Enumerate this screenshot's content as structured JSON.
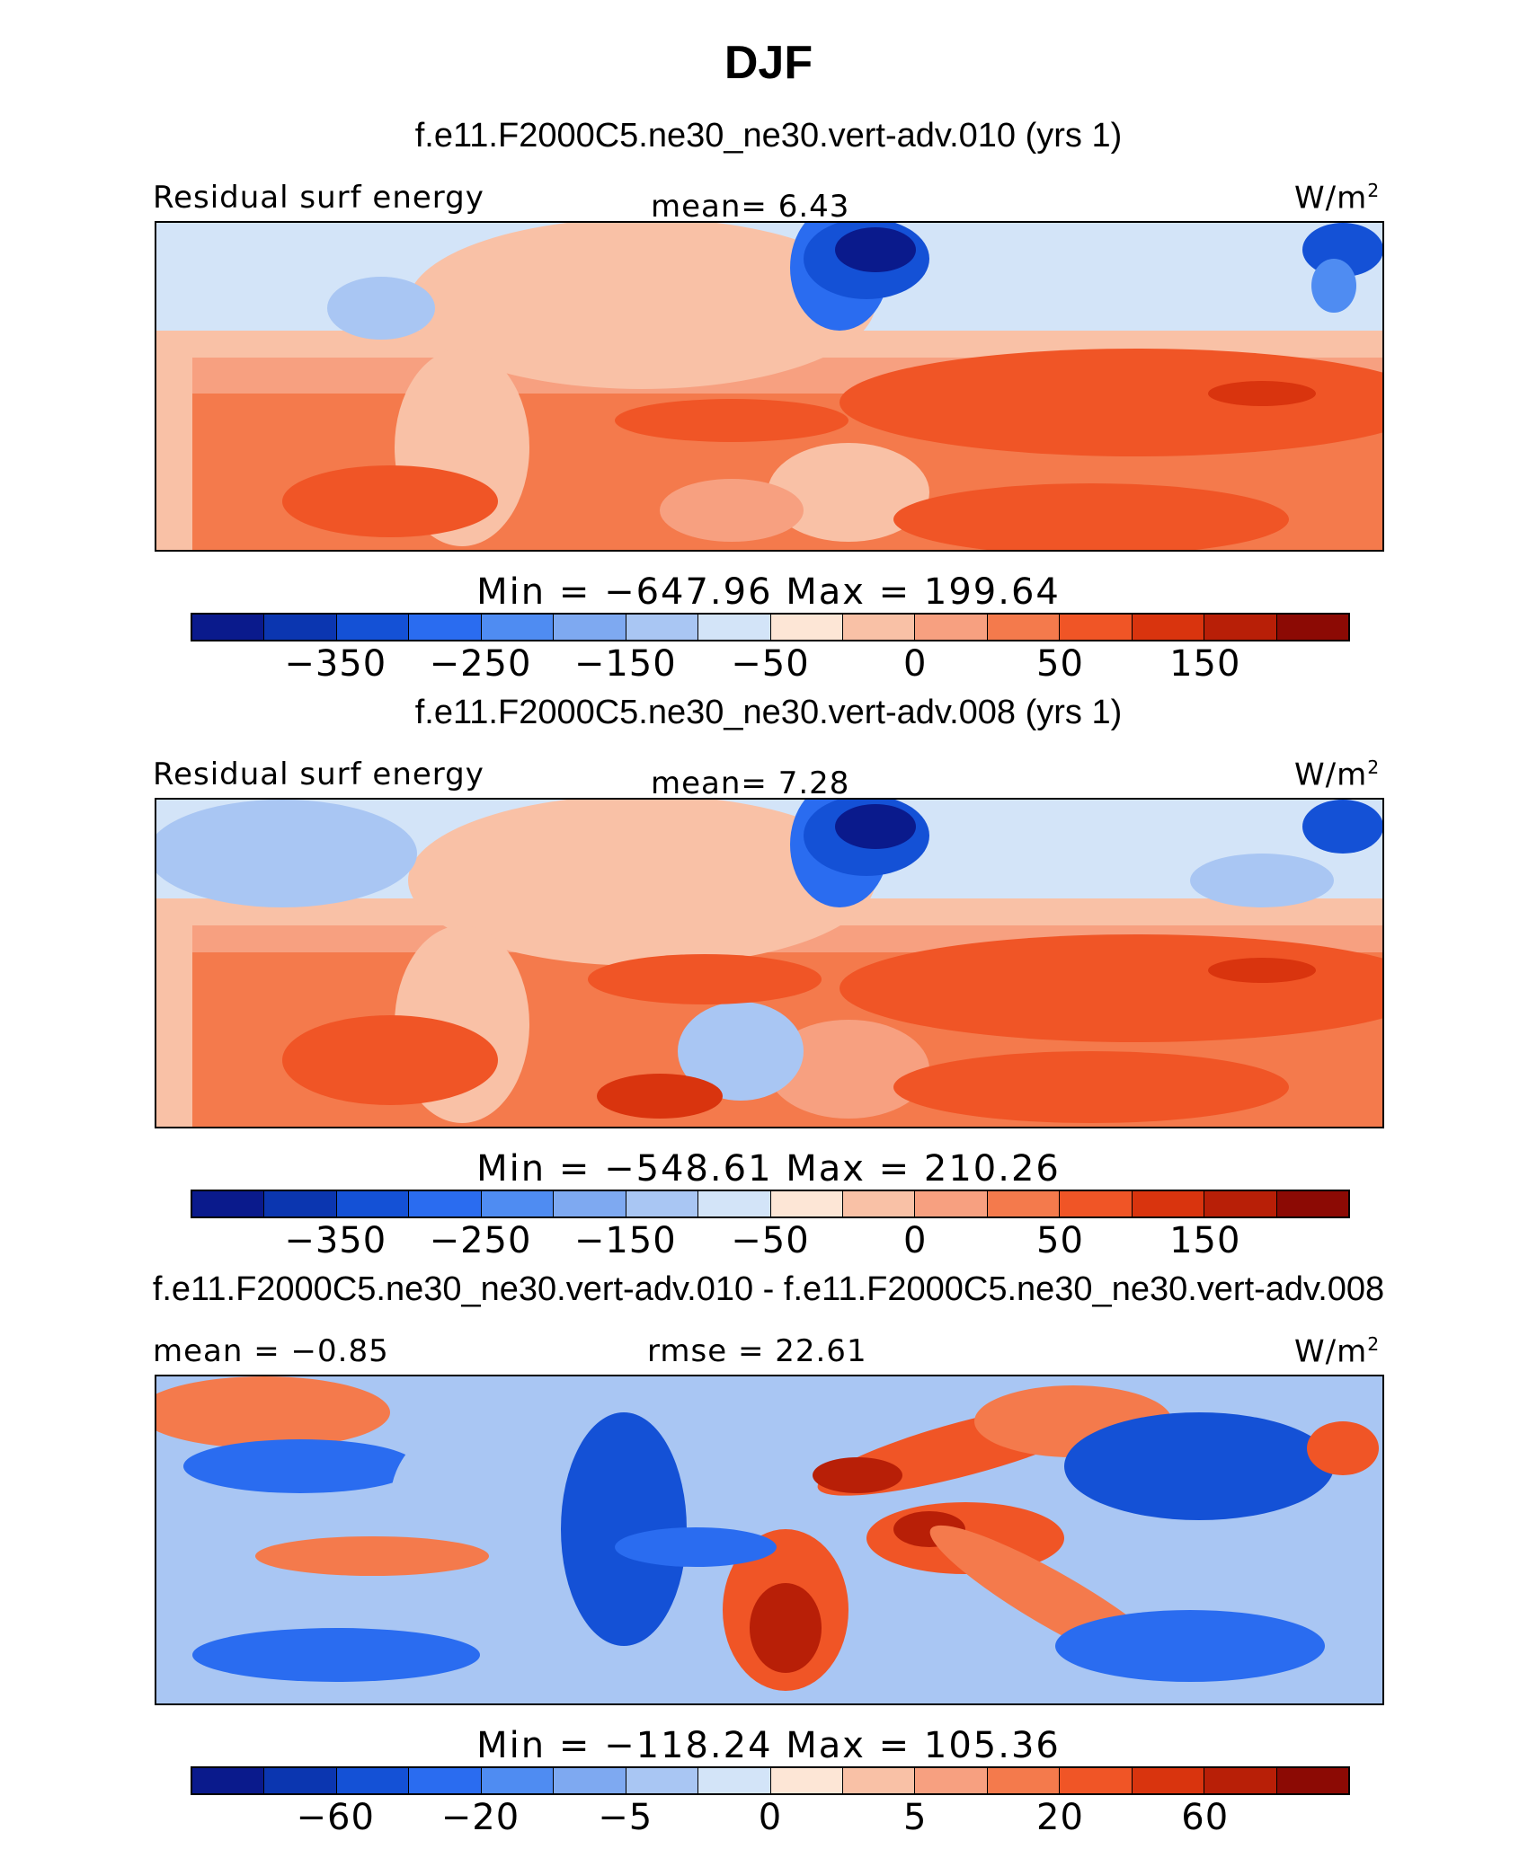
{
  "title": "DJF",
  "palette": [
    "#0a1a8c",
    "#0b36b0",
    "#1451d6",
    "#2a6cf0",
    "#4f8cf2",
    "#7ea9f1",
    "#a9c6f3",
    "#d3e4f8",
    "#fde6d6",
    "#f9c1a6",
    "#f7a080",
    "#f47a4c",
    "#f05526",
    "#d9340e",
    "#b81f07",
    "#8c0a04"
  ],
  "panels": [
    {
      "title": "f.e11.F2000C5.ne30_ne30.vert-adv.010 (yrs 1)",
      "left_label": "Residual surf energy",
      "center_label": "mean=   6.43",
      "units": "W/m",
      "units_sup": "2",
      "minmax": "Min  =  −647.96  Max  =  199.64",
      "ticks": [
        {
          "label": "−350",
          "index": 2
        },
        {
          "label": "−250",
          "index": 4
        },
        {
          "label": "−150",
          "index": 6
        },
        {
          "label": "−50",
          "index": 8
        },
        {
          "label": "0",
          "index": 10
        },
        {
          "label": "50",
          "index": 12
        },
        {
          "label": "150",
          "index": 14
        }
      ]
    },
    {
      "title": "f.e11.F2000C5.ne30_ne30.vert-adv.008 (yrs 1)",
      "left_label": "Residual surf energy",
      "center_label": "mean=   7.28",
      "units": "W/m",
      "units_sup": "2",
      "minmax": "Min  =  −548.61  Max  =  210.26",
      "ticks": [
        {
          "label": "−350",
          "index": 2
        },
        {
          "label": "−250",
          "index": 4
        },
        {
          "label": "−150",
          "index": 6
        },
        {
          "label": "−50",
          "index": 8
        },
        {
          "label": "0",
          "index": 10
        },
        {
          "label": "50",
          "index": 12
        },
        {
          "label": "150",
          "index": 14
        }
      ]
    },
    {
      "title": "f.e11.F2000C5.ne30_ne30.vert-adv.010 - f.e11.F2000C5.ne30_ne30.vert-adv.008",
      "left_label": "mean  =   −0.85",
      "center_label": "rmse  =   22.61",
      "units": "W/m",
      "units_sup": "2",
      "minmax": "Min  =  −118.24  Max  =  105.36",
      "ticks": [
        {
          "label": "−60",
          "index": 2
        },
        {
          "label": "−20",
          "index": 4
        },
        {
          "label": "−5",
          "index": 6
        },
        {
          "label": "0",
          "index": 8
        },
        {
          "label": "5",
          "index": 10
        },
        {
          "label": "20",
          "index": 12
        },
        {
          "label": "60",
          "index": 14
        }
      ]
    }
  ],
  "chart_data": [
    {
      "type": "heatmap",
      "title": "f.e11.F2000C5.ne30_ne30.vert-adv.010 (yrs 1)",
      "variable": "Residual surf energy",
      "units": "W/m2",
      "mean": 6.43,
      "min": -647.96,
      "max": 199.64,
      "colorbar_levels": [
        -400,
        -350,
        -300,
        -250,
        -200,
        -150,
        -100,
        -50,
        -25,
        0,
        25,
        50,
        100,
        150,
        200
      ],
      "colorbar_tick_labels": [
        "−350",
        "−250",
        "−150",
        "−50",
        "0",
        "50",
        "150"
      ],
      "xlim": [
        -60,
        300
      ],
      "ylim": [
        -45,
        50
      ]
    },
    {
      "type": "heatmap",
      "title": "f.e11.F2000C5.ne30_ne30.vert-adv.008 (yrs 1)",
      "variable": "Residual surf energy",
      "units": "W/m2",
      "mean": 7.28,
      "min": -548.61,
      "max": 210.26,
      "colorbar_levels": [
        -400,
        -350,
        -300,
        -250,
        -200,
        -150,
        -100,
        -50,
        -25,
        0,
        25,
        50,
        100,
        150,
        200
      ],
      "colorbar_tick_labels": [
        "−350",
        "−250",
        "−150",
        "−50",
        "0",
        "50",
        "150"
      ],
      "xlim": [
        -60,
        300
      ],
      "ylim": [
        -45,
        50
      ]
    },
    {
      "type": "heatmap",
      "title": "f.e11.F2000C5.ne30_ne30.vert-adv.010 - f.e11.F2000C5.ne30_ne30.vert-adv.008",
      "units": "W/m2",
      "mean": -0.85,
      "rmse": 22.61,
      "min": -118.24,
      "max": 105.36,
      "colorbar_levels": [
        -80,
        -60,
        -40,
        -20,
        -10,
        -5,
        -2,
        0,
        2,
        5,
        10,
        20,
        40,
        60,
        80
      ],
      "colorbar_tick_labels": [
        "−60",
        "−20",
        "−5",
        "0",
        "5",
        "20",
        "60"
      ],
      "xlim": [
        -60,
        300
      ],
      "ylim": [
        -45,
        50
      ]
    }
  ]
}
